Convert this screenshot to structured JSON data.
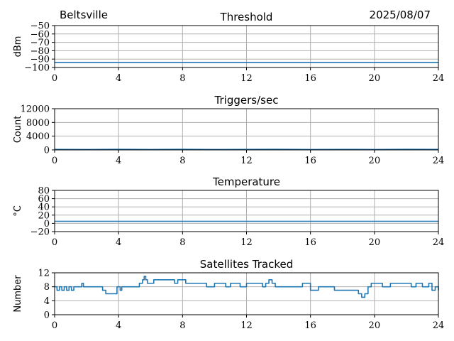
{
  "header": {
    "station": "Beltsville",
    "date": "2025/08/07"
  },
  "colors": {
    "series": "#1f77b4",
    "grid": "#b0b0b0"
  },
  "chart_data": [
    {
      "type": "line",
      "title": "Threshold",
      "xlabel": "",
      "ylabel": "dBm",
      "xlim": [
        0,
        24
      ],
      "ylim": [
        -100,
        -50
      ],
      "xticks": [
        0,
        4,
        8,
        12,
        16,
        20,
        24
      ],
      "yticks": [
        -50,
        -60,
        -70,
        -80,
        -90,
        -100
      ],
      "ytick_labels": [
        "−50",
        "−60",
        "−70",
        "−80",
        "−90",
        "−100"
      ],
      "grid": true,
      "series": [
        {
          "x": [
            0,
            24
          ],
          "y": [
            -94,
            -94
          ]
        }
      ]
    },
    {
      "type": "line",
      "title": "Triggers/sec",
      "xlabel": "",
      "ylabel": "Count",
      "xlim": [
        0,
        24
      ],
      "ylim": [
        0,
        12000
      ],
      "xticks": [
        0,
        4,
        8,
        12,
        16,
        20,
        24
      ],
      "yticks": [
        0,
        4000,
        8000,
        12000
      ],
      "ytick_labels": [
        "0",
        "4000",
        "8000",
        "12000"
      ],
      "grid": true,
      "series": [
        {
          "x": [
            0,
            2,
            4,
            6,
            8,
            10,
            12,
            14,
            16,
            18,
            20,
            22,
            24
          ],
          "y": [
            150,
            120,
            170,
            130,
            160,
            110,
            140,
            170,
            120,
            150,
            130,
            160,
            140
          ]
        }
      ]
    },
    {
      "type": "line",
      "title": "Temperature",
      "xlabel": "",
      "ylabel": "°C",
      "xlim": [
        0,
        24
      ],
      "ylim": [
        -20,
        80
      ],
      "xticks": [
        0,
        4,
        8,
        12,
        16,
        20,
        24
      ],
      "yticks": [
        -20,
        0,
        20,
        40,
        60,
        80
      ],
      "ytick_labels": [
        "−20",
        "0",
        "20",
        "40",
        "60",
        "80"
      ],
      "grid": true,
      "series": [
        {
          "x": [
            0,
            24
          ],
          "y": [
            5,
            5
          ]
        }
      ]
    },
    {
      "type": "line",
      "title": "Satellites Tracked",
      "xlabel": "",
      "ylabel": "Number",
      "xlim": [
        0,
        24
      ],
      "ylim": [
        0,
        12
      ],
      "xticks": [
        0,
        4,
        8,
        12,
        16,
        20,
        24
      ],
      "yticks": [
        0,
        4,
        8,
        12
      ],
      "ytick_labels": [
        "0",
        "4",
        "8",
        "12"
      ],
      "grid": true,
      "series": [
        {
          "step": true,
          "x": [
            0,
            0.15,
            0.3,
            0.45,
            0.6,
            0.75,
            0.9,
            1.05,
            1.2,
            1.35,
            1.5,
            1.7,
            1.8,
            1.95,
            2.1,
            2.3,
            2.5,
            3.0,
            3.2,
            3.3,
            3.5,
            3.9,
            4.0,
            4.1,
            4.2,
            4.5,
            4.6,
            5.0,
            5.3,
            5.5,
            5.6,
            5.7,
            5.8,
            6.0,
            6.2,
            6.5,
            7.0,
            7.5,
            7.7,
            8.0,
            8.2,
            8.5,
            9.0,
            9.5,
            10.0,
            10.5,
            10.7,
            11.0,
            11.3,
            11.6,
            12.0,
            12.5,
            13.0,
            13.2,
            13.4,
            13.6,
            13.8,
            14.0,
            14.5,
            15.0,
            15.5,
            15.8,
            16.0,
            16.2,
            16.5,
            17.0,
            17.5,
            17.8,
            18.0,
            18.5,
            19.0,
            19.2,
            19.4,
            19.6,
            19.8,
            20.0,
            20.5,
            21.0,
            21.5,
            22.0,
            22.3,
            22.6,
            23.0,
            23.4,
            23.6,
            23.8,
            24.0
          ],
          "y": [
            8,
            7,
            8,
            7,
            8,
            7,
            8,
            7,
            8,
            8,
            8,
            9,
            8,
            8,
            8,
            8,
            8,
            7,
            6,
            6,
            6,
            8,
            8,
            7,
            8,
            8,
            8,
            8,
            9,
            10,
            11,
            10,
            9,
            9,
            10,
            10,
            10,
            9,
            10,
            10,
            9,
            9,
            9,
            8,
            9,
            9,
            8,
            9,
            9,
            8,
            9,
            9,
            8,
            9,
            10,
            9,
            8,
            8,
            8,
            8,
            9,
            9,
            7,
            7,
            8,
            8,
            7,
            7,
            7,
            7,
            6,
            5,
            6,
            8,
            9,
            9,
            8,
            9,
            9,
            9,
            8,
            9,
            8,
            9,
            7,
            8,
            7
          ]
        }
      ]
    }
  ]
}
